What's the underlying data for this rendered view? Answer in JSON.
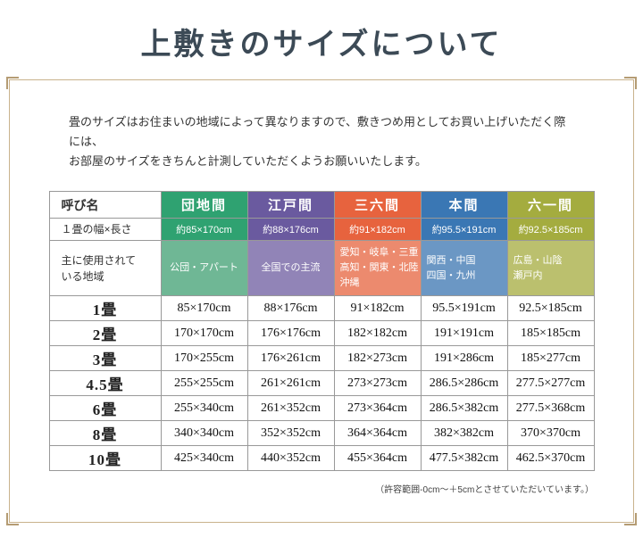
{
  "page": {
    "title": "上敷きのサイズについて",
    "intro": "畳のサイズはお住まいの地域によって異なりますので、敷きつめ用としてお買い上げいただく際には、\nお部屋のサイズをきちんと計測していただくようお願いいたします。",
    "footnote": "（許容範囲-0cm～＋5cmとさせていただいています。）"
  },
  "colors": {
    "title_text": "#3c4a56",
    "frame_border": "#c9b28c",
    "table_border": "#999999"
  },
  "table": {
    "corner_label": "呼び名",
    "width_row_label": "１畳の幅×長さ",
    "region_row_label": "主に使用されて\nいる地域",
    "columns": [
      {
        "name": "団地間",
        "size": "約85×170cm",
        "region": "公団・アパート",
        "color": "#2fa271",
        "light": "#6fb795"
      },
      {
        "name": "江戸間",
        "size": "約88×176cm",
        "region": "全国での主流",
        "color": "#6a5a9f",
        "light": "#9184b7"
      },
      {
        "name": "三六間",
        "size": "約91×182cm",
        "region": "愛知・岐阜・三重\n高知・関東・北陸\n沖縄",
        "color": "#e7633e",
        "light": "#ec8a6e"
      },
      {
        "name": "本間",
        "size": "約95.5×191cm",
        "region": "関西・中国\n四国・九州",
        "color": "#3a77b4",
        "light": "#6b97c4"
      },
      {
        "name": "六一間",
        "size": "約92.5×185cm",
        "region": "広島・山陰\n瀬戸内",
        "color": "#a4ac3f",
        "light": "#bbc06e"
      }
    ],
    "rows": [
      {
        "label": "1畳",
        "values": [
          "85×170cm",
          "88×176cm",
          "91×182cm",
          "95.5×191cm",
          "92.5×185cm"
        ]
      },
      {
        "label": "2畳",
        "values": [
          "170×170cm",
          "176×176cm",
          "182×182cm",
          "191×191cm",
          "185×185cm"
        ]
      },
      {
        "label": "3畳",
        "values": [
          "170×255cm",
          "176×261cm",
          "182×273cm",
          "191×286cm",
          "185×277cm"
        ]
      },
      {
        "label": "4.5畳",
        "values": [
          "255×255cm",
          "261×261cm",
          "273×273cm",
          "286.5×286cm",
          "277.5×277cm"
        ]
      },
      {
        "label": "6畳",
        "values": [
          "255×340cm",
          "261×352cm",
          "273×364cm",
          "286.5×382cm",
          "277.5×368cm"
        ]
      },
      {
        "label": "8畳",
        "values": [
          "340×340cm",
          "352×352cm",
          "364×364cm",
          "382×382cm",
          "370×370cm"
        ]
      },
      {
        "label": "10畳",
        "values": [
          "425×340cm",
          "440×352cm",
          "455×364cm",
          "477.5×382cm",
          "462.5×370cm"
        ]
      }
    ]
  }
}
